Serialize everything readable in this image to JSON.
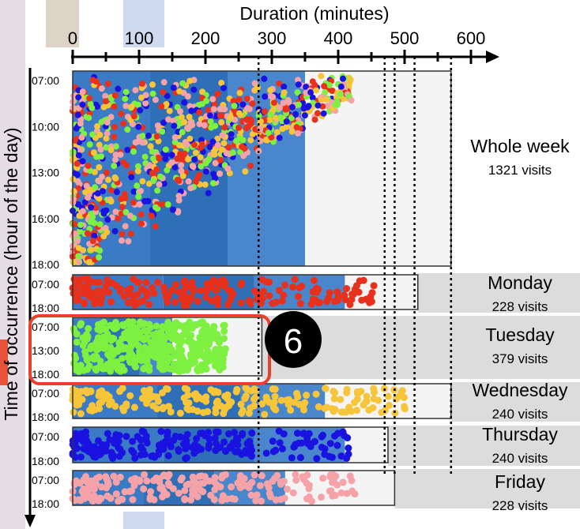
{
  "chart_data": {
    "type": "scatter",
    "title": "",
    "xlabel": "Duration (minutes)",
    "ylabel": "Time of occurrence (hour of the day)",
    "xlim": [
      0,
      600
    ],
    "x_ticks": [
      "0",
      "100",
      "200",
      "300",
      "400",
      "500",
      "600"
    ],
    "whole_week": {
      "name": "Whole week",
      "visits": "1321 visits",
      "y_ticks": [
        "07:00",
        "10:00",
        "13:00",
        "16:00",
        "18:00"
      ],
      "max_duration": 570
    },
    "days": [
      {
        "name": "Monday",
        "visits": "228 visits",
        "color": "#e8311c",
        "y_ticks": [
          "07:00",
          "18:00"
        ],
        "max_duration": 520
      },
      {
        "name": "Tuesday",
        "visits": "379 visits",
        "color": "#7ef040",
        "y_ticks": [
          "07:00",
          "13:00",
          "18:00"
        ],
        "max_duration": 285,
        "highlighted": true
      },
      {
        "name": "Wednesday",
        "visits": "240 visits",
        "color": "#f7c53a",
        "y_ticks": [
          "07:00",
          "18:00"
        ],
        "max_duration": 570
      },
      {
        "name": "Thursday",
        "visits": "240 visits",
        "color": "#1a12e0",
        "y_ticks": [
          "07:00",
          "18:00"
        ],
        "max_duration": 475
      },
      {
        "name": "Friday",
        "visits": "228 visits",
        "color": "#f5a3a8",
        "y_ticks": [
          "07:00",
          "18:00"
        ],
        "max_duration": 485
      }
    ],
    "reference_lines_minutes": [
      280,
      470,
      485,
      515,
      570
    ],
    "annotation": {
      "label": "6",
      "target": "Tuesday"
    }
  }
}
